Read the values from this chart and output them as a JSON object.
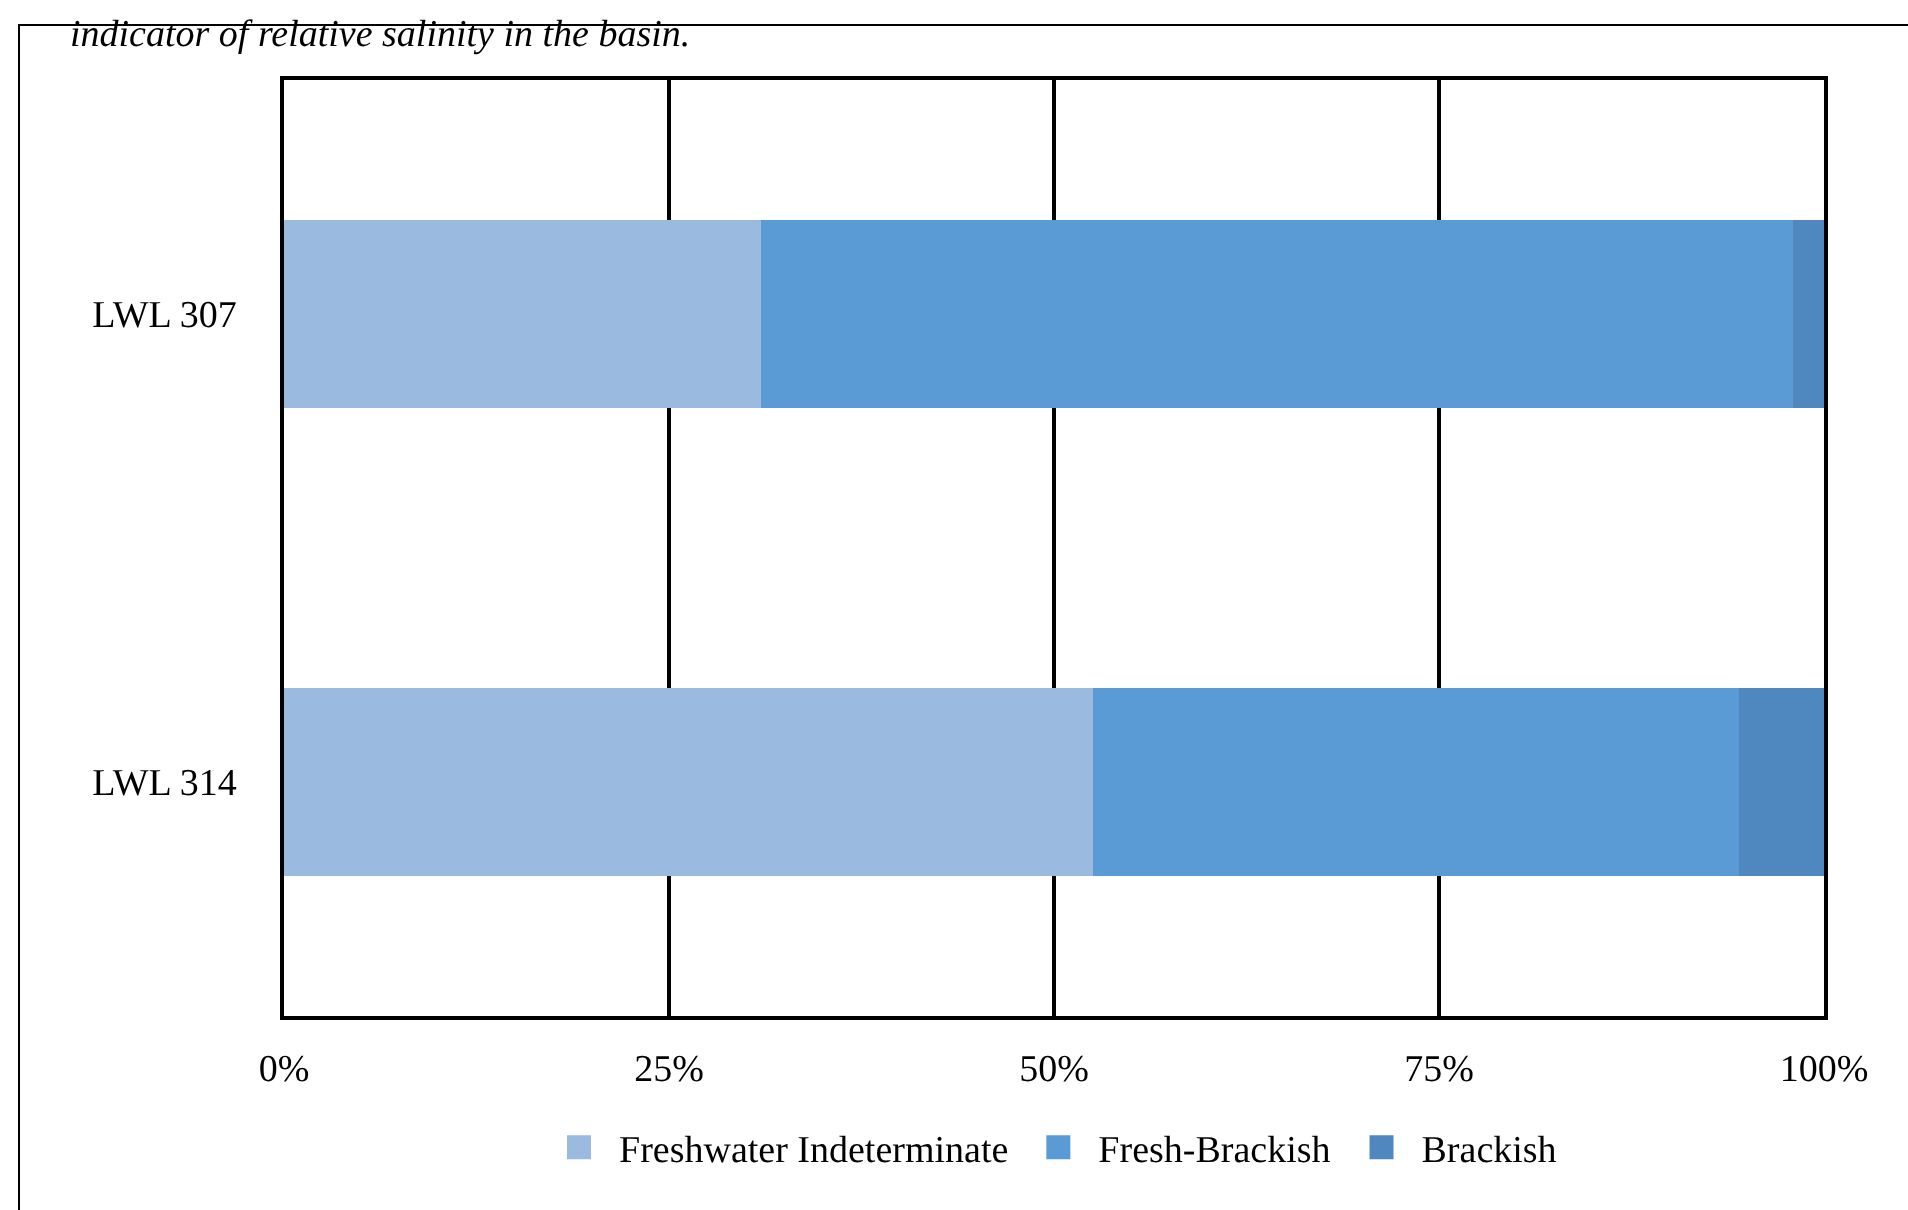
{
  "chart_data": {
    "type": "bar",
    "orientation": "horizontal",
    "stacked": true,
    "categories": [
      "LWL 307",
      "LWL 314"
    ],
    "series": [
      {
        "name": "Freshwater Indeterminate",
        "color": "#9bbae0",
        "values": [
          31,
          52.5
        ]
      },
      {
        "name": "Fresh-Brackish",
        "color": "#5b9bd5",
        "values": [
          67,
          42
        ]
      },
      {
        "name": "Brackish",
        "color": "#4f87bf",
        "values": [
          2,
          5.5
        ]
      }
    ],
    "xlim": [
      0,
      100
    ],
    "xticks": [
      {
        "value": 0,
        "label": "0%"
      },
      {
        "value": 25,
        "label": "25%"
      },
      {
        "value": 50,
        "label": "50%"
      },
      {
        "value": 75,
        "label": "75%"
      },
      {
        "value": 100,
        "label": "100%"
      }
    ],
    "grid": "x",
    "legend": "bottom",
    "annotations": [
      "indicator of relative salinity in the basin."
    ]
  }
}
